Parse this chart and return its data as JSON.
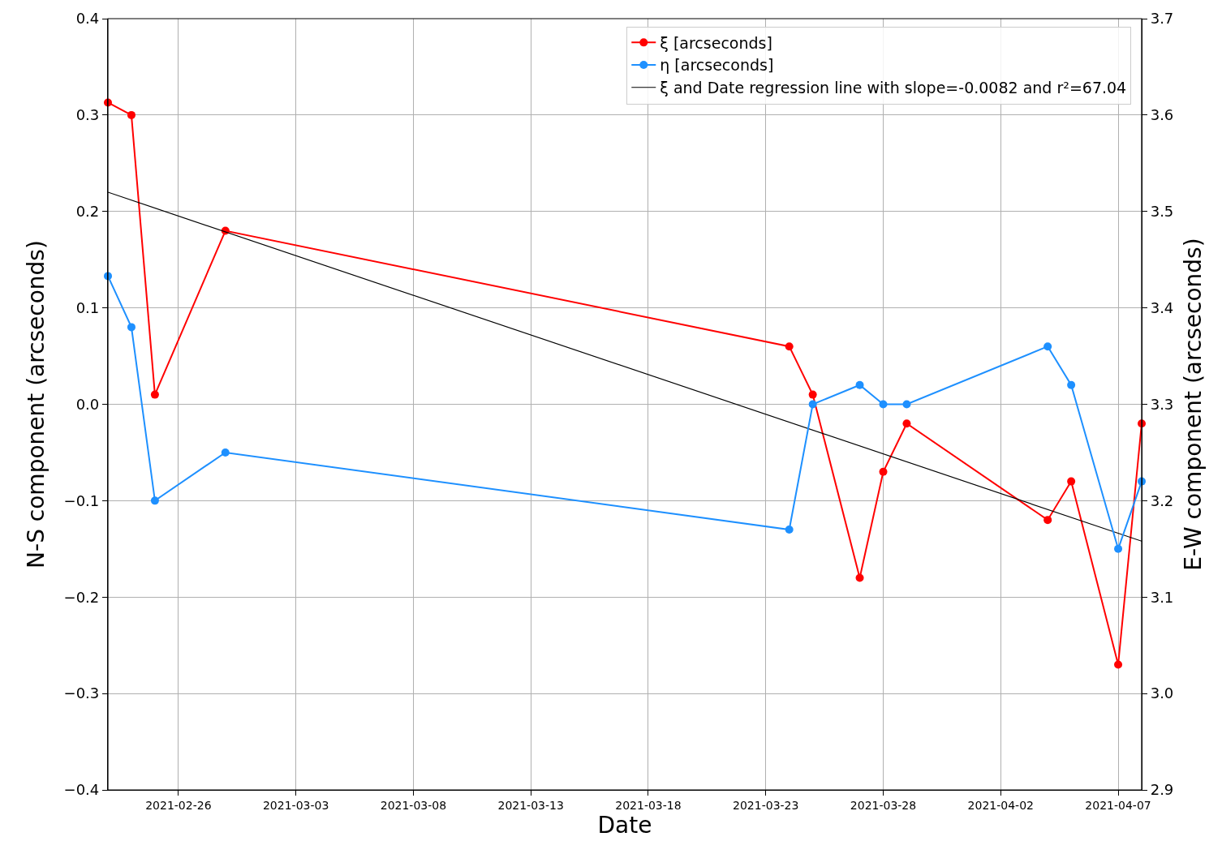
{
  "chart_data": {
    "type": "line",
    "xlabel": "Date",
    "ylabel": "N-S component (arcseconds)",
    "y2label": "E-W component (arcseconds)",
    "x": [
      "2021-02-23",
      "2021-02-24",
      "2021-02-25",
      "2021-02-28",
      "2021-03-24",
      "2021-03-25",
      "2021-03-27",
      "2021-03-28",
      "2021-03-29",
      "2021-04-04",
      "2021-04-05",
      "2021-04-07",
      "2021-04-08"
    ],
    "series": [
      {
        "name": "ξ [arcseconds]",
        "color": "#ff0000",
        "marker": "circle",
        "values": [
          0.313,
          0.3,
          0.01,
          0.18,
          0.06,
          0.01,
          -0.18,
          -0.07,
          -0.02,
          -0.12,
          -0.08,
          -0.27,
          -0.02
        ]
      },
      {
        "name": "η [arcseconds]",
        "color": "#1e90ff",
        "marker": "circle",
        "axis": "y2",
        "values": [
          3.433,
          3.38,
          3.2,
          3.25,
          3.17,
          3.3,
          3.32,
          3.3,
          3.3,
          3.36,
          3.32,
          3.15,
          3.22
        ]
      },
      {
        "name": "ξ and Date regression line with slope=-0.0082 and r²=67.04",
        "color": "#000000",
        "marker": "none",
        "x": [
          "2021-02-23",
          "2021-04-08"
        ],
        "values": [
          0.22,
          -0.142
        ]
      }
    ],
    "xlim": [
      "2021-02-23",
      "2021-04-08"
    ],
    "xticks": [
      "2021-02-26",
      "2021-03-03",
      "2021-03-08",
      "2021-03-13",
      "2021-03-18",
      "2021-03-23",
      "2021-03-28",
      "2021-04-02",
      "2021-04-07"
    ],
    "ylim": [
      -0.4,
      0.4
    ],
    "yticks": [
      {
        "value": -0.4,
        "label": "−0.4"
      },
      {
        "value": -0.3,
        "label": "−0.3"
      },
      {
        "value": -0.2,
        "label": "−0.2"
      },
      {
        "value": -0.1,
        "label": "−0.1"
      },
      {
        "value": 0,
        "label": "0.0"
      },
      0.1,
      0.2,
      0.3,
      0.4
    ],
    "y2lim": [
      2.9,
      3.7
    ],
    "y2ticks": [
      2.9,
      {
        "value": 3,
        "label": "3.0"
      },
      3.1,
      3.2,
      3.3,
      3.4,
      3.5,
      3.6,
      3.7
    ],
    "grid": true,
    "legend": "top right"
  }
}
